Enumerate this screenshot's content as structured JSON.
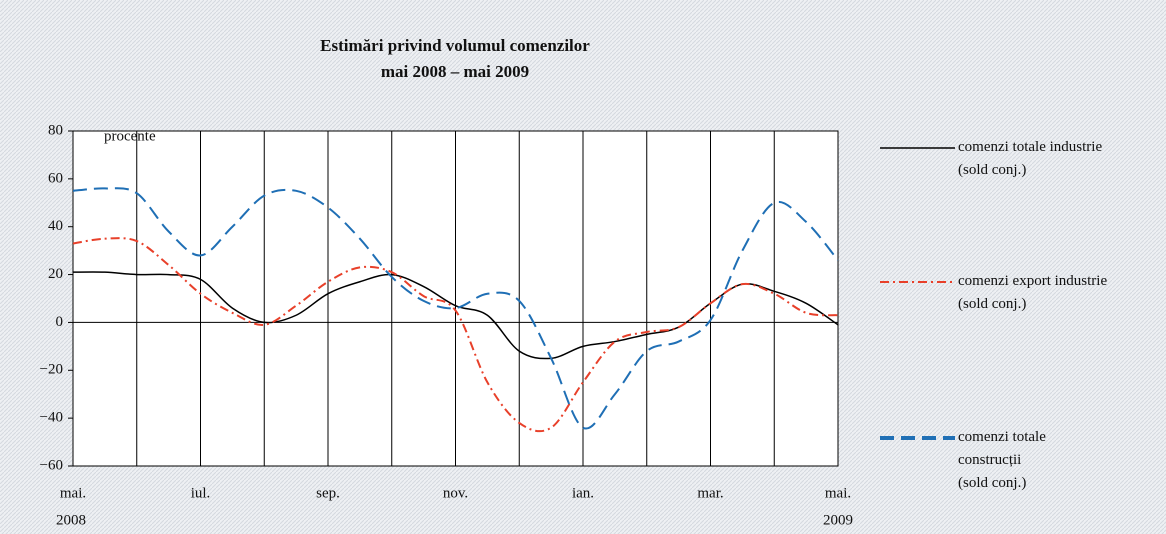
{
  "chart_data": {
    "type": "line",
    "title": "Estimări privind volumul comenzilor",
    "subtitle": "mai 2008 – mai 2009",
    "y_axis_label": "procente",
    "categories": [
      "mai.",
      null,
      null,
      null,
      "iul.",
      null,
      null,
      null,
      "sep.",
      null,
      null,
      null,
      "nov.",
      null,
      null,
      null,
      "ian.",
      null,
      null,
      null,
      "mar.",
      null,
      null,
      null,
      "mai."
    ],
    "years": [
      "2008",
      "2009"
    ],
    "ylim": [
      -60,
      80
    ],
    "yticks": [
      {
        "value": -60,
        "label": "−60"
      },
      {
        "value": -40,
        "label": "−40"
      },
      {
        "value": -20,
        "label": "−20"
      },
      0,
      20,
      40,
      60,
      80
    ],
    "grid": true,
    "series": [
      {
        "name": "comenzi totale industrie\n(sold conj.)",
        "color": "#000000",
        "style": "solid",
        "values": [
          21,
          21,
          20,
          20,
          18,
          6,
          0,
          3,
          12,
          17,
          20,
          15,
          7,
          3,
          -12,
          -15,
          -10,
          -8,
          -5,
          -2,
          8,
          16,
          13,
          8,
          -1
        ]
      },
      {
        "name": "comenzi export industrie\n(sold conj.)",
        "color": "#e8402a",
        "style": "dashdot",
        "values": [
          33,
          35,
          34,
          24,
          12,
          4,
          -1,
          7,
          17,
          23,
          21,
          11,
          5,
          -25,
          -42,
          -44,
          -25,
          -8,
          -4,
          -2,
          8,
          16,
          12,
          4,
          3
        ]
      },
      {
        "name": "comenzi totale\nconstrucții\n(sold conj.)",
        "color": "#1f6fb5",
        "style": "dashed",
        "values": [
          55,
          56,
          54,
          38,
          28,
          40,
          53,
          55,
          48,
          35,
          19,
          9,
          6,
          12,
          9,
          -15,
          -44,
          -30,
          -12,
          -8,
          1,
          30,
          50,
          42,
          26
        ]
      }
    ]
  }
}
